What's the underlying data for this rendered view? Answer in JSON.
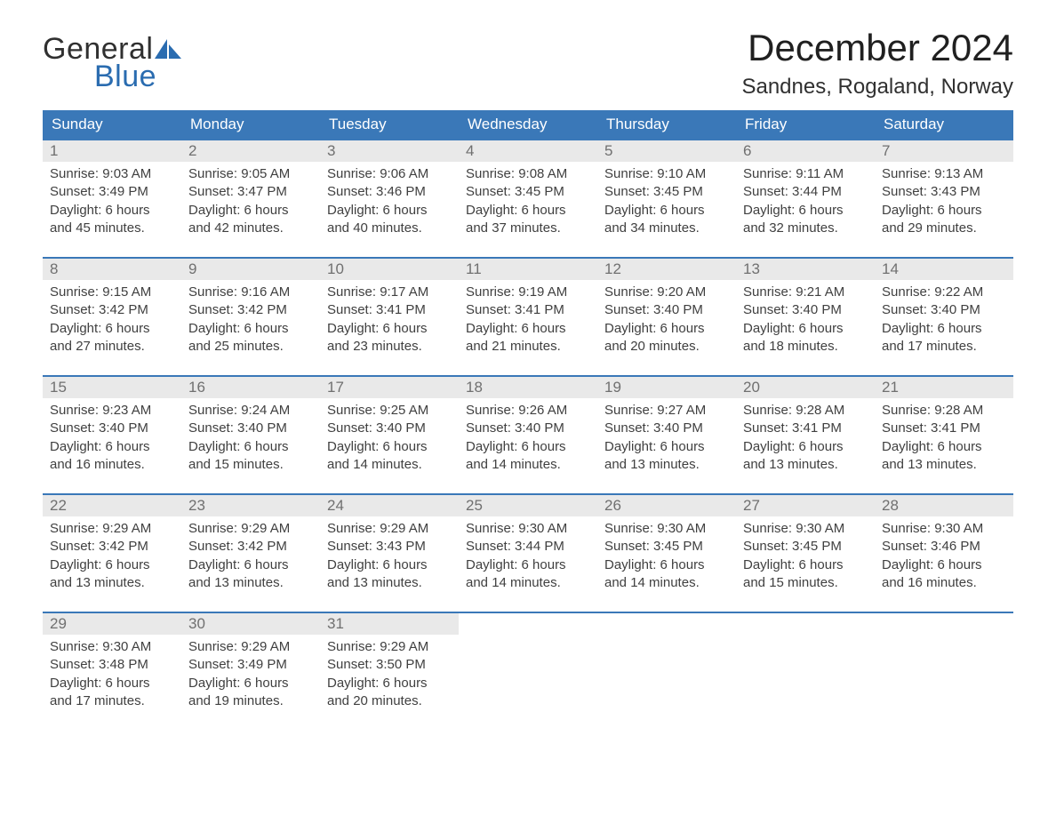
{
  "logo": {
    "text_general": "General",
    "text_blue": "Blue",
    "sail_color": "#2a6cb0"
  },
  "title": "December 2024",
  "location": "Sandnes, Rogaland, Norway",
  "colors": {
    "header_bg": "#3a78b8",
    "header_text": "#ffffff",
    "daynum_bg": "#e9e9e9",
    "daynum_text": "#707070",
    "row_border": "#3a78b8",
    "body_text": "#404040",
    "page_bg": "#ffffff"
  },
  "day_headers": [
    "Sunday",
    "Monday",
    "Tuesday",
    "Wednesday",
    "Thursday",
    "Friday",
    "Saturday"
  ],
  "weeks": [
    [
      {
        "day": "1",
        "sunrise": "Sunrise: 9:03 AM",
        "sunset": "Sunset: 3:49 PM",
        "daylight1": "Daylight: 6 hours",
        "daylight2": "and 45 minutes."
      },
      {
        "day": "2",
        "sunrise": "Sunrise: 9:05 AM",
        "sunset": "Sunset: 3:47 PM",
        "daylight1": "Daylight: 6 hours",
        "daylight2": "and 42 minutes."
      },
      {
        "day": "3",
        "sunrise": "Sunrise: 9:06 AM",
        "sunset": "Sunset: 3:46 PM",
        "daylight1": "Daylight: 6 hours",
        "daylight2": "and 40 minutes."
      },
      {
        "day": "4",
        "sunrise": "Sunrise: 9:08 AM",
        "sunset": "Sunset: 3:45 PM",
        "daylight1": "Daylight: 6 hours",
        "daylight2": "and 37 minutes."
      },
      {
        "day": "5",
        "sunrise": "Sunrise: 9:10 AM",
        "sunset": "Sunset: 3:45 PM",
        "daylight1": "Daylight: 6 hours",
        "daylight2": "and 34 minutes."
      },
      {
        "day": "6",
        "sunrise": "Sunrise: 9:11 AM",
        "sunset": "Sunset: 3:44 PM",
        "daylight1": "Daylight: 6 hours",
        "daylight2": "and 32 minutes."
      },
      {
        "day": "7",
        "sunrise": "Sunrise: 9:13 AM",
        "sunset": "Sunset: 3:43 PM",
        "daylight1": "Daylight: 6 hours",
        "daylight2": "and 29 minutes."
      }
    ],
    [
      {
        "day": "8",
        "sunrise": "Sunrise: 9:15 AM",
        "sunset": "Sunset: 3:42 PM",
        "daylight1": "Daylight: 6 hours",
        "daylight2": "and 27 minutes."
      },
      {
        "day": "9",
        "sunrise": "Sunrise: 9:16 AM",
        "sunset": "Sunset: 3:42 PM",
        "daylight1": "Daylight: 6 hours",
        "daylight2": "and 25 minutes."
      },
      {
        "day": "10",
        "sunrise": "Sunrise: 9:17 AM",
        "sunset": "Sunset: 3:41 PM",
        "daylight1": "Daylight: 6 hours",
        "daylight2": "and 23 minutes."
      },
      {
        "day": "11",
        "sunrise": "Sunrise: 9:19 AM",
        "sunset": "Sunset: 3:41 PM",
        "daylight1": "Daylight: 6 hours",
        "daylight2": "and 21 minutes."
      },
      {
        "day": "12",
        "sunrise": "Sunrise: 9:20 AM",
        "sunset": "Sunset: 3:40 PM",
        "daylight1": "Daylight: 6 hours",
        "daylight2": "and 20 minutes."
      },
      {
        "day": "13",
        "sunrise": "Sunrise: 9:21 AM",
        "sunset": "Sunset: 3:40 PM",
        "daylight1": "Daylight: 6 hours",
        "daylight2": "and 18 minutes."
      },
      {
        "day": "14",
        "sunrise": "Sunrise: 9:22 AM",
        "sunset": "Sunset: 3:40 PM",
        "daylight1": "Daylight: 6 hours",
        "daylight2": "and 17 minutes."
      }
    ],
    [
      {
        "day": "15",
        "sunrise": "Sunrise: 9:23 AM",
        "sunset": "Sunset: 3:40 PM",
        "daylight1": "Daylight: 6 hours",
        "daylight2": "and 16 minutes."
      },
      {
        "day": "16",
        "sunrise": "Sunrise: 9:24 AM",
        "sunset": "Sunset: 3:40 PM",
        "daylight1": "Daylight: 6 hours",
        "daylight2": "and 15 minutes."
      },
      {
        "day": "17",
        "sunrise": "Sunrise: 9:25 AM",
        "sunset": "Sunset: 3:40 PM",
        "daylight1": "Daylight: 6 hours",
        "daylight2": "and 14 minutes."
      },
      {
        "day": "18",
        "sunrise": "Sunrise: 9:26 AM",
        "sunset": "Sunset: 3:40 PM",
        "daylight1": "Daylight: 6 hours",
        "daylight2": "and 14 minutes."
      },
      {
        "day": "19",
        "sunrise": "Sunrise: 9:27 AM",
        "sunset": "Sunset: 3:40 PM",
        "daylight1": "Daylight: 6 hours",
        "daylight2": "and 13 minutes."
      },
      {
        "day": "20",
        "sunrise": "Sunrise: 9:28 AM",
        "sunset": "Sunset: 3:41 PM",
        "daylight1": "Daylight: 6 hours",
        "daylight2": "and 13 minutes."
      },
      {
        "day": "21",
        "sunrise": "Sunrise: 9:28 AM",
        "sunset": "Sunset: 3:41 PM",
        "daylight1": "Daylight: 6 hours",
        "daylight2": "and 13 minutes."
      }
    ],
    [
      {
        "day": "22",
        "sunrise": "Sunrise: 9:29 AM",
        "sunset": "Sunset: 3:42 PM",
        "daylight1": "Daylight: 6 hours",
        "daylight2": "and 13 minutes."
      },
      {
        "day": "23",
        "sunrise": "Sunrise: 9:29 AM",
        "sunset": "Sunset: 3:42 PM",
        "daylight1": "Daylight: 6 hours",
        "daylight2": "and 13 minutes."
      },
      {
        "day": "24",
        "sunrise": "Sunrise: 9:29 AM",
        "sunset": "Sunset: 3:43 PM",
        "daylight1": "Daylight: 6 hours",
        "daylight2": "and 13 minutes."
      },
      {
        "day": "25",
        "sunrise": "Sunrise: 9:30 AM",
        "sunset": "Sunset: 3:44 PM",
        "daylight1": "Daylight: 6 hours",
        "daylight2": "and 14 minutes."
      },
      {
        "day": "26",
        "sunrise": "Sunrise: 9:30 AM",
        "sunset": "Sunset: 3:45 PM",
        "daylight1": "Daylight: 6 hours",
        "daylight2": "and 14 minutes."
      },
      {
        "day": "27",
        "sunrise": "Sunrise: 9:30 AM",
        "sunset": "Sunset: 3:45 PM",
        "daylight1": "Daylight: 6 hours",
        "daylight2": "and 15 minutes."
      },
      {
        "day": "28",
        "sunrise": "Sunrise: 9:30 AM",
        "sunset": "Sunset: 3:46 PM",
        "daylight1": "Daylight: 6 hours",
        "daylight2": "and 16 minutes."
      }
    ],
    [
      {
        "day": "29",
        "sunrise": "Sunrise: 9:30 AM",
        "sunset": "Sunset: 3:48 PM",
        "daylight1": "Daylight: 6 hours",
        "daylight2": "and 17 minutes."
      },
      {
        "day": "30",
        "sunrise": "Sunrise: 9:29 AM",
        "sunset": "Sunset: 3:49 PM",
        "daylight1": "Daylight: 6 hours",
        "daylight2": "and 19 minutes."
      },
      {
        "day": "31",
        "sunrise": "Sunrise: 9:29 AM",
        "sunset": "Sunset: 3:50 PM",
        "daylight1": "Daylight: 6 hours",
        "daylight2": "and 20 minutes."
      },
      null,
      null,
      null,
      null
    ]
  ]
}
